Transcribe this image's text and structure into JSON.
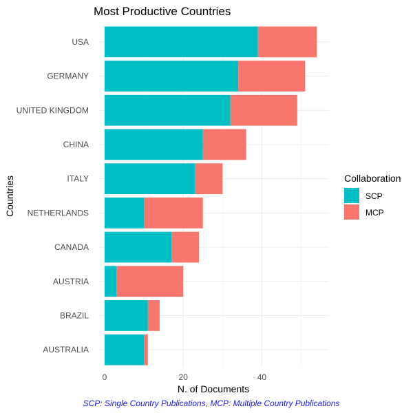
{
  "chart_data": {
    "type": "bar",
    "orientation": "horizontal",
    "stacked": true,
    "title": "Most Productive Countries",
    "xlabel": "N. of Documents",
    "ylabel": "Countries",
    "categories": [
      "USA",
      "GERMANY",
      "UNITED KINGDOM",
      "CHINA",
      "ITALY",
      "NETHERLANDS",
      "CANADA",
      "AUSTRIA",
      "BRAZIL",
      "AUSTRALIA"
    ],
    "series": [
      {
        "name": "SCP",
        "color": "#00BFC4",
        "values": [
          39,
          34,
          32,
          25,
          23,
          10,
          17,
          3,
          11,
          10
        ]
      },
      {
        "name": "MCP",
        "color": "#F8766D",
        "values": [
          15,
          17,
          17,
          11,
          7,
          15,
          7,
          17,
          3,
          1
        ]
      }
    ],
    "xlim": [
      0,
      57
    ],
    "xticks": [
      "0",
      "20",
      "40"
    ],
    "xtick_values": [
      0,
      20,
      40
    ],
    "grid": true,
    "legend": {
      "title": "Collaboration",
      "position": "right"
    },
    "caption": "SCP: Single Country Publications, MCP: Multiple Country Publications"
  }
}
